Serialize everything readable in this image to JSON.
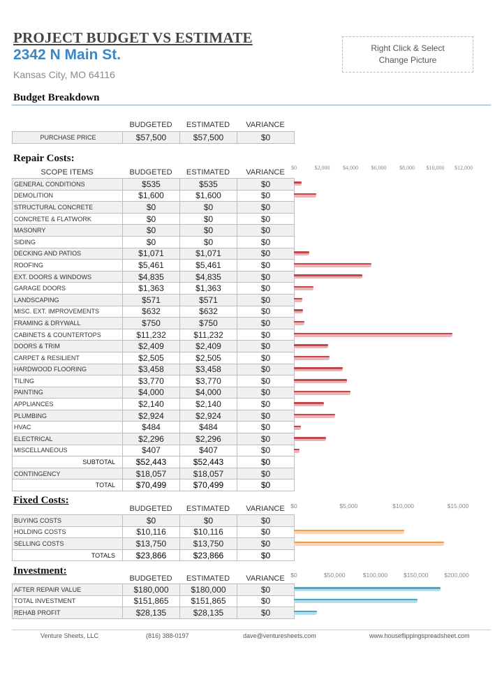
{
  "header": {
    "title": "PROJECT BUDGET VS ESTIMATE",
    "address": "2342 N Main St.",
    "city": "Kansas City, MO 64116",
    "picture_line1": "Right Click & Select",
    "picture_line2": "Change Picture"
  },
  "columns": {
    "budgeted": "BUDGETED",
    "estimated": "ESTIMATED",
    "variance": "VARIANCE",
    "scope": "SCOPE ITEMS"
  },
  "budget_breakdown": {
    "heading": "Budget Breakdown",
    "purchase": {
      "label": "PURCHASE PRICE",
      "budgeted": "$57,500",
      "estimated": "$57,500",
      "variance": "$0"
    }
  },
  "repair": {
    "heading": "Repair Costs:",
    "rows": [
      {
        "label": "GENERAL CONDITIONS",
        "budgeted": "$535",
        "estimated": "$535",
        "variance": "$0"
      },
      {
        "label": "DEMOLITION",
        "budgeted": "$1,600",
        "estimated": "$1,600",
        "variance": "$0"
      },
      {
        "label": "STRUCTURAL CONCRETE",
        "budgeted": "$0",
        "estimated": "$0",
        "variance": "$0"
      },
      {
        "label": "CONCRETE & FLATWORK",
        "budgeted": "$0",
        "estimated": "$0",
        "variance": "$0"
      },
      {
        "label": "MASONRY",
        "budgeted": "$0",
        "estimated": "$0",
        "variance": "$0"
      },
      {
        "label": "SIDING",
        "budgeted": "$0",
        "estimated": "$0",
        "variance": "$0"
      },
      {
        "label": "DECKING AND PATIOS",
        "budgeted": "$1,071",
        "estimated": "$1,071",
        "variance": "$0"
      },
      {
        "label": "ROOFING",
        "budgeted": "$5,461",
        "estimated": "$5,461",
        "variance": "$0"
      },
      {
        "label": "EXT. DOORS & WINDOWS",
        "budgeted": "$4,835",
        "estimated": "$4,835",
        "variance": "$0"
      },
      {
        "label": "GARAGE DOORS",
        "budgeted": "$1,363",
        "estimated": "$1,363",
        "variance": "$0"
      },
      {
        "label": "LANDSCAPING",
        "budgeted": "$571",
        "estimated": "$571",
        "variance": "$0"
      },
      {
        "label": "MISC. EXT. IMPROVEMENTS",
        "budgeted": "$632",
        "estimated": "$632",
        "variance": "$0"
      },
      {
        "label": "FRAMING & DRYWALL",
        "budgeted": "$750",
        "estimated": "$750",
        "variance": "$0"
      },
      {
        "label": "CABINETS & COUNTERTOPS",
        "budgeted": "$11,232",
        "estimated": "$11,232",
        "variance": "$0"
      },
      {
        "label": "DOORS & TRIM",
        "budgeted": "$2,409",
        "estimated": "$2,409",
        "variance": "$0"
      },
      {
        "label": "CARPET & RESILIENT",
        "budgeted": "$2,505",
        "estimated": "$2,505",
        "variance": "$0"
      },
      {
        "label": "HARDWOOD FLOORING",
        "budgeted": "$3,458",
        "estimated": "$3,458",
        "variance": "$0"
      },
      {
        "label": "TILING",
        "budgeted": "$3,770",
        "estimated": "$3,770",
        "variance": "$0"
      },
      {
        "label": "PAINTING",
        "budgeted": "$4,000",
        "estimated": "$4,000",
        "variance": "$0"
      },
      {
        "label": "APPLIANCES",
        "budgeted": "$2,140",
        "estimated": "$2,140",
        "variance": "$0"
      },
      {
        "label": "PLUMBING",
        "budgeted": "$2,924",
        "estimated": "$2,924",
        "variance": "$0"
      },
      {
        "label": "HVAC",
        "budgeted": "$484",
        "estimated": "$484",
        "variance": "$0"
      },
      {
        "label": "ELECTRICAL",
        "budgeted": "$2,296",
        "estimated": "$2,296",
        "variance": "$0"
      },
      {
        "label": "MISCELLANEOUS",
        "budgeted": "$407",
        "estimated": "$407",
        "variance": "$0"
      }
    ],
    "subtotal": {
      "label": "SUBTOTAL",
      "budgeted": "$52,443",
      "estimated": "$52,443",
      "variance": "$0"
    },
    "contingency": {
      "label": "CONTINGENCY",
      "budgeted": "$18,057",
      "estimated": "$18,057",
      "variance": "$0"
    },
    "total": {
      "label": "TOTAL",
      "budgeted": "$70,499",
      "estimated": "$70,499",
      "variance": "$0"
    }
  },
  "fixed": {
    "heading": "Fixed Costs:",
    "rows": [
      {
        "label": "BUYING COSTS",
        "budgeted": "$0",
        "estimated": "$0",
        "variance": "$0"
      },
      {
        "label": "HOLDING COSTS",
        "budgeted": "$10,116",
        "estimated": "$10,116",
        "variance": "$0"
      },
      {
        "label": "SELLING COSTS",
        "budgeted": "$13,750",
        "estimated": "$13,750",
        "variance": "$0"
      }
    ],
    "total": {
      "label": "TOTALS",
      "budgeted": "$23,866",
      "estimated": "$23,866",
      "variance": "$0"
    }
  },
  "investment": {
    "heading": "Investment:",
    "rows": [
      {
        "label": "AFTER REPAIR VALUE",
        "budgeted": "$180,000",
        "estimated": "$180,000",
        "variance": "$0"
      },
      {
        "label": "TOTAL INVESTMENT",
        "budgeted": "$151,865",
        "estimated": "$151,865",
        "variance": "$0"
      },
      {
        "label": "REHAB PROFIT",
        "budgeted": "$28,135",
        "estimated": "$28,135",
        "variance": "$0"
      }
    ]
  },
  "footer": {
    "company": "Venture Sheets, LLC",
    "phone": "(816) 388-0197",
    "email": "dave@venturesheets.com",
    "website": "www.houseflippingspreadsheet.com"
  },
  "chart_data": [
    {
      "type": "bar",
      "orientation": "horizontal",
      "section": "repair",
      "xlim": [
        0,
        12000
      ],
      "ticks": [
        "$0",
        "$2,000",
        "$4,000",
        "$6,000",
        "$8,000",
        "$10,000",
        "$12,000"
      ],
      "tick_values": [
        0,
        2000,
        4000,
        6000,
        8000,
        10000,
        12000
      ],
      "colors": {
        "budgeted": "#c0474b",
        "estimated": "#e8b4b6"
      },
      "values": [
        535,
        1600,
        0,
        0,
        0,
        0,
        1071,
        5461,
        4835,
        1363,
        571,
        632,
        750,
        11232,
        2409,
        2505,
        3458,
        3770,
        4000,
        2140,
        2924,
        484,
        2296,
        407
      ]
    },
    {
      "type": "bar",
      "orientation": "horizontal",
      "section": "fixed",
      "xlim": [
        0,
        15000
      ],
      "ticks": [
        "$0",
        "$5,000",
        "$10,000",
        "$15,000"
      ],
      "tick_values": [
        0,
        5000,
        10000,
        15000
      ],
      "colors": {
        "budgeted": "#f39a4b",
        "estimated": "#fbd4b4"
      },
      "values": [
        0,
        10116,
        13750
      ]
    },
    {
      "type": "bar",
      "orientation": "horizontal",
      "section": "investment",
      "xlim": [
        0,
        200000
      ],
      "ticks": [
        "$0",
        "$50,000",
        "$100,000",
        "$150,000",
        "$200,000"
      ],
      "tick_values": [
        0,
        50000,
        100000,
        150000,
        200000
      ],
      "colors": {
        "budgeted": "#4aa8c6",
        "estimated": "#b5dde9"
      },
      "values": [
        180000,
        151865,
        28135
      ]
    }
  ]
}
